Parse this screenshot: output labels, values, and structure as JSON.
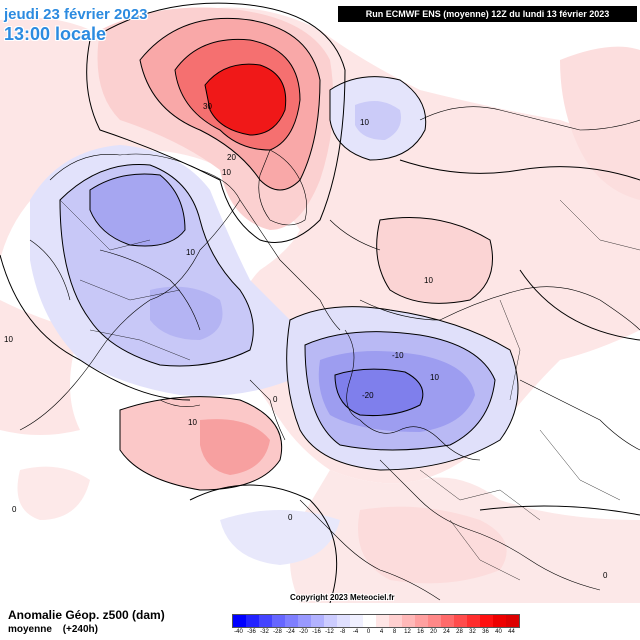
{
  "header": {
    "date": "jeudi 23 février 2023",
    "time": "13:00 locale",
    "run": "Run ECMWF ENS (moyenne) 12Z du lundi 13 février 2023"
  },
  "footer": {
    "field_title": "Anomalie Géop. z500 (dam)",
    "field_sub_a": "moyenne",
    "field_sub_b": "(+240h)",
    "copyright": "Copyright 2023 Meteociel.fr"
  },
  "legend": {
    "labels": [
      "-40",
      "-36",
      "-32",
      "-28",
      "-24",
      "-20",
      "-16",
      "-12",
      "-8",
      "-4",
      "0",
      "4",
      "8",
      "12",
      "16",
      "20",
      "24",
      "28",
      "32",
      "36",
      "40",
      "44"
    ],
    "colors": [
      "#0000ff",
      "#2222ff",
      "#4444ff",
      "#6666ff",
      "#7f7fff",
      "#9999ff",
      "#b2b2ff",
      "#ccccff",
      "#e0e0ff",
      "#f0f0ff",
      "#ffffff",
      "#ffe6e6",
      "#ffd0d0",
      "#ffb8b8",
      "#ffa0a0",
      "#ff8888",
      "#ff6a6a",
      "#ff4c4c",
      "#ff2e2e",
      "#ff1010",
      "#ee0000",
      "#dd0000"
    ]
  },
  "contour_labels": {
    "c30": "30",
    "c20a": "20",
    "c10a": "10",
    "c10b": "10",
    "c10c": "10",
    "c10d": "10",
    "c10e": "10",
    "c10f": "-10",
    "c10g": "10",
    "c20b": "-20",
    "c0a": "0",
    "c0b": "0",
    "c0c": "0",
    "c0d": "0",
    "c10h": "10"
  },
  "colors": {
    "title": "#2c8be0",
    "positive_strong": "#f01818",
    "negative": "#7f7fff"
  }
}
